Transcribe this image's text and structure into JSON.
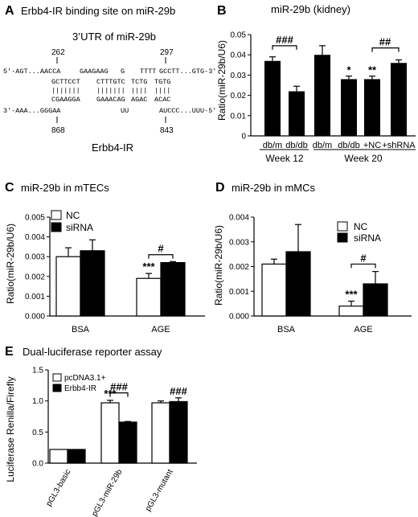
{
  "panel_labels": [
    "A",
    "B",
    "C",
    "D",
    "E"
  ],
  "panel_a": {
    "title": "Erbb4-IR binding site on miR-29b",
    "utr_label": "3’UTR of miR-29b",
    "gene_label": "Erbb4-IR",
    "top_positions": [
      "262",
      "297"
    ],
    "bottom_positions": [
      "868",
      "843"
    ],
    "top_strand_left": "5'-AGT...AACCA",
    "top_strand_right": "GCCTT...GTG-3'",
    "top_loops": [
      "GAAGAAG",
      "G",
      "TTTT"
    ],
    "paired_top": [
      "GCTTCCT",
      "CTTTGTC",
      "TCTG",
      "TGTG"
    ],
    "bars": [
      "|||||||",
      "|||||||",
      "||||",
      "||||"
    ],
    "paired_bottom": [
      "CGAAGGA",
      "GAAACAG",
      "AGAC",
      "ACAC"
    ],
    "bottom_strand_left": "3'-AAA...GGGAA",
    "bottom_strand_right": "AUCCC...UUU-5'",
    "bottom_loops": [
      "UU"
    ]
  },
  "chart_data": [
    {
      "panel": "B",
      "type": "bar",
      "title": "miR-29b (kidney)",
      "ylabel": "Ratio(miR-29b/U6)",
      "ylim": [
        0,
        0.05
      ],
      "yticks": [
        "0",
        "0.01",
        "0.02",
        "0.03",
        "0.04",
        "0.05"
      ],
      "categories": [
        "db/m",
        "db/db",
        "db/m",
        "db/db",
        "+NC",
        "+shRNA"
      ],
      "groups": [
        "Week 12",
        "Week 20"
      ],
      "values": [
        0.037,
        0.022,
        0.04,
        0.028,
        0.028,
        0.036
      ],
      "errors": [
        0.002,
        0.0025,
        0.0045,
        0.0015,
        0.0015,
        0.0015
      ],
      "annotations": [
        "###",
        "*",
        "**",
        "##"
      ],
      "bar_color": "#000000"
    },
    {
      "panel": "C",
      "type": "bar",
      "title": "miR-29b in mTECs",
      "ylabel": "Ratio(miR-29b/U6)",
      "ylim": [
        0,
        0.005
      ],
      "yticks": [
        "0.000",
        "0.001",
        "0.002",
        "0.003",
        "0.004",
        "0.005"
      ],
      "categories": [
        "BSA",
        "AGE"
      ],
      "series": [
        {
          "name": "NC",
          "values": [
            0.003,
            0.0019
          ],
          "errors": [
            0.00045,
            0.00025
          ],
          "color": "#ffffff"
        },
        {
          "name": "siRNA",
          "values": [
            0.0033,
            0.0027
          ],
          "errors": [
            0.00055,
            5e-05
          ],
          "color": "#000000"
        }
      ],
      "annotations": [
        "***",
        "#"
      ]
    },
    {
      "panel": "D",
      "type": "bar",
      "title": "miR-29b in mMCs",
      "ylabel": "Ratio(miR-29b/U6)",
      "ylim": [
        0,
        0.004
      ],
      "yticks": [
        "0.000",
        "0.001",
        "0.002",
        "0.003",
        "0.004"
      ],
      "categories": [
        "BSA",
        "AGE"
      ],
      "series": [
        {
          "name": "NC",
          "values": [
            0.0021,
            0.0004
          ],
          "errors": [
            0.0002,
            0.0002
          ],
          "color": "#ffffff"
        },
        {
          "name": "siRNA",
          "values": [
            0.0026,
            0.0013
          ],
          "errors": [
            0.0011,
            0.0005
          ],
          "color": "#000000"
        }
      ],
      "annotations": [
        "***",
        "#"
      ]
    },
    {
      "panel": "E",
      "type": "bar",
      "title": "Dual-luciferase reporter assay",
      "ylabel": "Luciferase Renilla/Firefly",
      "ylim": [
        0,
        1.5
      ],
      "yticks": [
        "0.0",
        "0.5",
        "1.0",
        "1.5"
      ],
      "categories": [
        "pGL3-basic",
        "pGL3-miR-29b",
        "pGL3-mutant"
      ],
      "series": [
        {
          "name": "pcDNA3.1+",
          "values": [
            0.22,
            0.97,
            0.97
          ],
          "errors": [
            0.0,
            0.04,
            0.03
          ],
          "color": "#ffffff"
        },
        {
          "name": "Erbb4-IR",
          "values": [
            0.22,
            0.66,
            0.99
          ],
          "errors": [
            0.0,
            0.01,
            0.06
          ],
          "color": "#000000"
        }
      ],
      "annotations": [
        "***",
        "###",
        "###"
      ]
    }
  ]
}
